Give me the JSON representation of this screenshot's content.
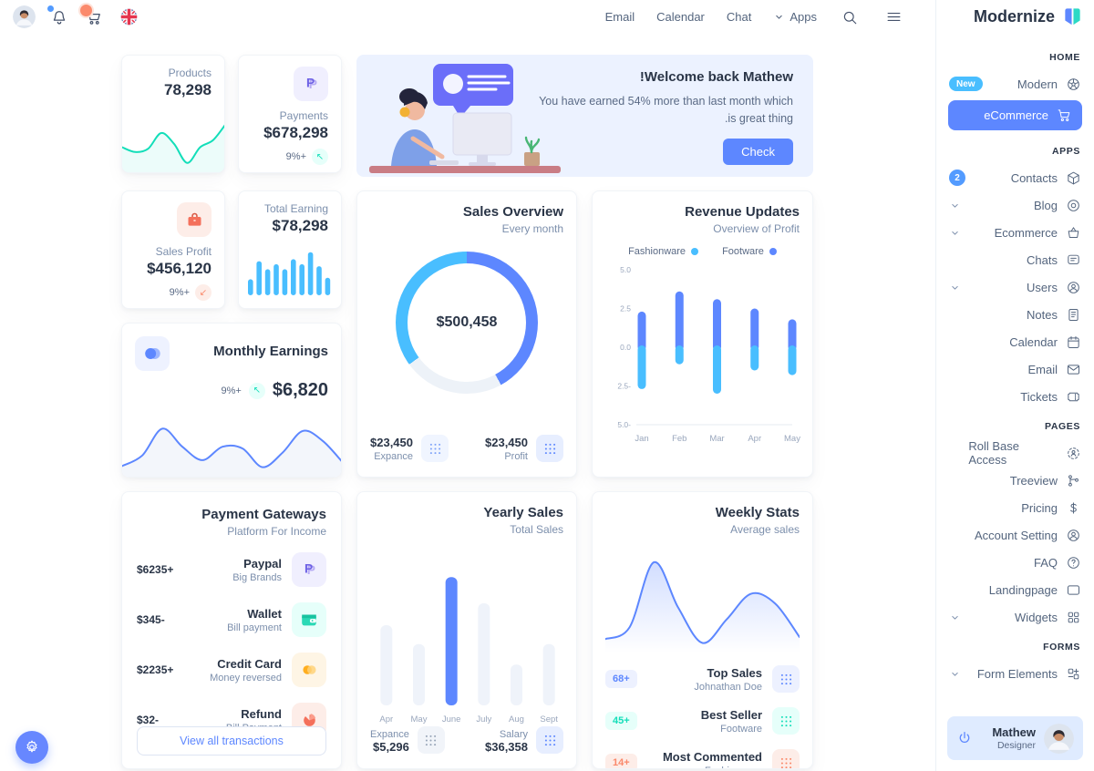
{
  "colors": {
    "primary": "#5D87FF",
    "sky": "#49BEFF",
    "teal": "#13DEB9",
    "coral": "#FA896B",
    "warning": "#FFAE1F"
  },
  "brand": {
    "name": "Modernize"
  },
  "topbar": {
    "nav_items": [
      "Email",
      "Calendar",
      "Chat"
    ],
    "apps_label": "Apps",
    "icons": [
      "avatar",
      "bell-icon",
      "cart-icon",
      "uk-flag-icon",
      "search-icon",
      "menu-icon"
    ]
  },
  "sidebar": {
    "sections": [
      {
        "heading": "HOME",
        "items": [
          {
            "label": "Modern",
            "icon": "aperture",
            "badge": "New"
          },
          {
            "label": "eCommerce",
            "icon": "cart",
            "active": true
          }
        ]
      },
      {
        "heading": "APPS",
        "items": [
          {
            "label": "Contacts",
            "icon": "package",
            "count": "2"
          },
          {
            "label": "Blog",
            "icon": "blog",
            "chevron": true
          },
          {
            "label": "Ecommerce",
            "icon": "basket",
            "chevron": true
          },
          {
            "label": "Chats",
            "icon": "chat"
          },
          {
            "label": "Users",
            "icon": "user-circle",
            "chevron": true
          },
          {
            "label": "Notes",
            "icon": "note"
          },
          {
            "label": "Calendar",
            "icon": "calendar"
          },
          {
            "label": "Email",
            "icon": "mail"
          },
          {
            "label": "Tickets",
            "icon": "ticket"
          }
        ]
      },
      {
        "heading": "PAGES",
        "items": [
          {
            "label": "Roll Base Access",
            "icon": "access"
          },
          {
            "label": "Treeview",
            "icon": "tree"
          },
          {
            "label": "Pricing",
            "icon": "dollar"
          },
          {
            "label": "Account Setting",
            "icon": "user-circle"
          },
          {
            "label": "FAQ",
            "icon": "help"
          },
          {
            "label": "Landingpage",
            "icon": "app-window"
          },
          {
            "label": "Widgets",
            "icon": "grid",
            "chevron": true
          }
        ]
      },
      {
        "heading": "FORMS",
        "items": [
          {
            "label": "Form Elements",
            "icon": "form",
            "chevron": true
          }
        ]
      }
    ]
  },
  "profile": {
    "name": "Mathew",
    "role": "Designer"
  },
  "cards": {
    "products": {
      "label": "Products",
      "value": "78,298",
      "chart": {
        "type": "line",
        "points": [
          45,
          35,
          42,
          75,
          52,
          12,
          45,
          60,
          95
        ],
        "color": "#13DEB9"
      }
    },
    "payments": {
      "label": "Payments",
      "value": "$678,298",
      "delta": "9%+",
      "trend": "up",
      "icon": "paypal"
    },
    "welcome": {
      "title": "!Welcome back Mathew",
      "body_lines": [
        "You have earned 54% more than last month which",
        ".is great thing"
      ],
      "button_label": "Check"
    },
    "sales_profit": {
      "label": "Sales Profit",
      "value": "$456,120",
      "delta": "9%+",
      "trend": "down",
      "icon": "briefcase"
    },
    "total_earning": {
      "label": "Total Earning",
      "value": "$78,298",
      "chart": {
        "type": "bar",
        "values": [
          32,
          68,
          52,
          62,
          52,
          72,
          62,
          86,
          58,
          35
        ],
        "color": "#49BEFF"
      }
    },
    "sales_overview": {
      "title": "Sales Overview",
      "subtitle": "Every month",
      "center_value": "$500,458",
      "chart": {
        "type": "donut",
        "segments": [
          {
            "name": "profit",
            "color": "#5D87FF",
            "value": 42
          },
          {
            "name": "rest",
            "color": "#EDF2F8",
            "value": 23
          },
          {
            "name": "expance",
            "color": "#49BEFF",
            "value": 35
          }
        ]
      },
      "stats": [
        {
          "value": "$23,450",
          "label": "Expance",
          "dot_color": "#7FA3F8",
          "chip_bg": "#F0F5FF"
        },
        {
          "value": "$23,450",
          "label": "Profit",
          "dot_color": "#5D87FF",
          "chip_bg": "#E7EEFF"
        }
      ]
    },
    "revenue_updates": {
      "title": "Revenue Updates",
      "subtitle": "Overview of Profit",
      "legend": [
        {
          "label": "Fashionware",
          "color": "#49BEFF"
        },
        {
          "label": "Footware",
          "color": "#5D87FF"
        }
      ],
      "chart": {
        "type": "diverging-bar",
        "categories": [
          "Jan",
          "Feb",
          "Mar",
          "Apr",
          "May"
        ],
        "series": [
          {
            "name": "Footware",
            "values": [
              2.3,
              3.6,
              3.1,
              2.5,
              1.8
            ],
            "color": "#5D87FF"
          },
          {
            "name": "Fashionware",
            "values": [
              -2.7,
              -1.1,
              -3.0,
              -1.5,
              -1.8
            ],
            "color": "#49BEFF"
          }
        ],
        "y_tick_labels": [
          "5.0",
          "2.5",
          "0.0",
          "2.5-",
          "5.0-"
        ],
        "ylim": [
          -5,
          5
        ]
      }
    },
    "monthly_earnings": {
      "title": "Monthly Earnings",
      "delta": "9%+",
      "trend": "up",
      "value": "$6,820",
      "chart": {
        "type": "line",
        "points": [
          12,
          30,
          76,
          45,
          22,
          45,
          42,
          10,
          35,
          72,
          55,
          18
        ],
        "color": "#5D87FF"
      }
    },
    "payment_gateways": {
      "title": "Payment Gateways",
      "subtitle": "Platform For Income",
      "rows": [
        {
          "title": "Paypal",
          "subtitle": "Big Brands",
          "amount": "$6235+",
          "icon": "paypal",
          "chip_bg": "#F0EFFE"
        },
        {
          "title": "Wallet",
          "subtitle": "Bill payment",
          "amount": "$345-",
          "icon": "wallet",
          "chip_bg": "#E6FFFA"
        },
        {
          "title": "Credit Card",
          "subtitle": "Money reversed",
          "amount": "$2235+",
          "icon": "credit-card",
          "chip_bg": "#FEF5E5"
        },
        {
          "title": "Refund",
          "subtitle": "Bill Payment",
          "amount": "$32-",
          "icon": "refund",
          "chip_bg": "#FDEDE8"
        }
      ],
      "button_label": "View all transactions"
    },
    "yearly_sales": {
      "title": "Yearly Sales",
      "subtitle": "Total Sales",
      "chart": {
        "type": "bar",
        "categories": [
          "Apr",
          "May",
          "June",
          "July",
          "Aug",
          "Sept"
        ],
        "values": [
          55,
          42,
          88,
          70,
          28,
          42
        ],
        "highlight_index": 2,
        "bar_color": "#EFF3FA",
        "highlight_color": "#5D87FF"
      },
      "stats": [
        {
          "label": "Expance",
          "value": "$5,296",
          "dot_color": "#97A4B7",
          "chip_bg": "#F1F4F9"
        },
        {
          "label": "Salary",
          "value": "$36,358",
          "dot_color": "#5D87FF",
          "chip_bg": "#E7EEFF"
        }
      ]
    },
    "weekly_stats": {
      "title": "Weekly Stats",
      "subtitle": "Average sales",
      "chart": {
        "type": "line",
        "points": [
          10,
          22,
          88,
          42,
          6,
          30,
          56,
          46,
          12
        ],
        "color": "#5D87FF"
      },
      "rows": [
        {
          "badge": "68+",
          "title": "Top Sales",
          "subtitle": "Johnathan Doe",
          "color": "#5D87FF",
          "chip_bg": "#EDF1FF"
        },
        {
          "badge": "45+",
          "title": "Best Seller",
          "subtitle": "Footware",
          "color": "#13DEB9",
          "chip_bg": "#E6FFFA"
        },
        {
          "badge": "14+",
          "title": "Most Commented",
          "subtitle": "Fashionware",
          "color": "#FA896B",
          "chip_bg": "#FDEDE8"
        }
      ]
    }
  }
}
